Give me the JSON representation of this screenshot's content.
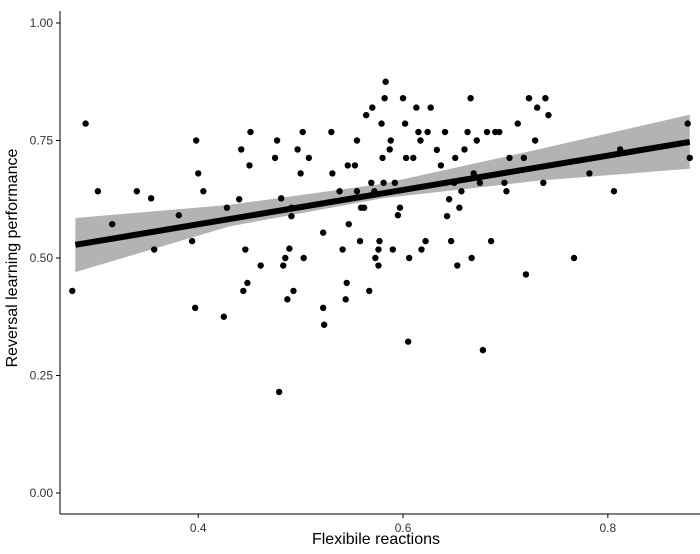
{
  "chart_data": {
    "type": "scatter",
    "title": "",
    "xlabel": "Flexibile reactions",
    "ylabel": "Reversal learning performance",
    "xlim": [
      0.265,
      0.89
    ],
    "ylim": [
      0,
      1.0
    ],
    "x_ticks": [
      0.4,
      0.6,
      0.8
    ],
    "x_tick_labels": [
      "0.4",
      "0.6",
      "0.8"
    ],
    "y_ticks": [
      0.0,
      0.25,
      0.5,
      0.75,
      1.0
    ],
    "y_tick_labels": [
      "0.00",
      "0.25",
      "0.50",
      "0.75",
      "1.00"
    ],
    "grid": false,
    "legend": "none",
    "colors": {
      "points": "#000000",
      "fit_line": "#000000",
      "confidence_band": "#b3b3b3",
      "axis": "#000000"
    },
    "fit": {
      "type": "linear",
      "x": [
        0.28,
        0.88
      ],
      "y": [
        0.528,
        0.747
      ]
    },
    "confidence_band": {
      "x": [
        0.28,
        0.43,
        0.58,
        0.73,
        0.88
      ],
      "lower": [
        0.47,
        0.567,
        0.627,
        0.664,
        0.69
      ],
      "upper": [
        0.585,
        0.613,
        0.658,
        0.73,
        0.805
      ]
    },
    "points": [
      {
        "x": 0.277,
        "y": 0.43
      },
      {
        "x": 0.29,
        "y": 0.786
      },
      {
        "x": 0.302,
        "y": 0.642
      },
      {
        "x": 0.316,
        "y": 0.572
      },
      {
        "x": 0.34,
        "y": 0.642
      },
      {
        "x": 0.354,
        "y": 0.627
      },
      {
        "x": 0.357,
        "y": 0.518
      },
      {
        "x": 0.381,
        "y": 0.591
      },
      {
        "x": 0.394,
        "y": 0.536
      },
      {
        "x": 0.397,
        "y": 0.394
      },
      {
        "x": 0.398,
        "y": 0.75
      },
      {
        "x": 0.4,
        "y": 0.68
      },
      {
        "x": 0.405,
        "y": 0.642
      },
      {
        "x": 0.425,
        "y": 0.375
      },
      {
        "x": 0.428,
        "y": 0.607
      },
      {
        "x": 0.44,
        "y": 0.625
      },
      {
        "x": 0.442,
        "y": 0.731
      },
      {
        "x": 0.444,
        "y": 0.43
      },
      {
        "x": 0.446,
        "y": 0.518
      },
      {
        "x": 0.448,
        "y": 0.447
      },
      {
        "x": 0.45,
        "y": 0.697
      },
      {
        "x": 0.451,
        "y": 0.768
      },
      {
        "x": 0.461,
        "y": 0.484
      },
      {
        "x": 0.475,
        "y": 0.713
      },
      {
        "x": 0.477,
        "y": 0.75
      },
      {
        "x": 0.479,
        "y": 0.215
      },
      {
        "x": 0.481,
        "y": 0.627
      },
      {
        "x": 0.483,
        "y": 0.484
      },
      {
        "x": 0.485,
        "y": 0.5
      },
      {
        "x": 0.487,
        "y": 0.412
      },
      {
        "x": 0.489,
        "y": 0.52
      },
      {
        "x": 0.491,
        "y": 0.589
      },
      {
        "x": 0.491,
        "y": 0.607
      },
      {
        "x": 0.493,
        "y": 0.43
      },
      {
        "x": 0.497,
        "y": 0.731
      },
      {
        "x": 0.5,
        "y": 0.68
      },
      {
        "x": 0.502,
        "y": 0.768
      },
      {
        "x": 0.503,
        "y": 0.5
      },
      {
        "x": 0.508,
        "y": 0.713
      },
      {
        "x": 0.522,
        "y": 0.394
      },
      {
        "x": 0.522,
        "y": 0.554
      },
      {
        "x": 0.523,
        "y": 0.358
      },
      {
        "x": 0.53,
        "y": 0.768
      },
      {
        "x": 0.531,
        "y": 0.68
      },
      {
        "x": 0.538,
        "y": 0.642
      },
      {
        "x": 0.541,
        "y": 0.518
      },
      {
        "x": 0.544,
        "y": 0.412
      },
      {
        "x": 0.545,
        "y": 0.447
      },
      {
        "x": 0.546,
        "y": 0.697
      },
      {
        "x": 0.547,
        "y": 0.572
      },
      {
        "x": 0.553,
        "y": 0.697
      },
      {
        "x": 0.555,
        "y": 0.642
      },
      {
        "x": 0.555,
        "y": 0.75
      },
      {
        "x": 0.558,
        "y": 0.536
      },
      {
        "x": 0.559,
        "y": 0.607
      },
      {
        "x": 0.562,
        "y": 0.607
      },
      {
        "x": 0.564,
        "y": 0.804
      },
      {
        "x": 0.567,
        "y": 0.43
      },
      {
        "x": 0.569,
        "y": 0.66
      },
      {
        "x": 0.57,
        "y": 0.82
      },
      {
        "x": 0.572,
        "y": 0.642
      },
      {
        "x": 0.573,
        "y": 0.5
      },
      {
        "x": 0.576,
        "y": 0.518
      },
      {
        "x": 0.576,
        "y": 0.484
      },
      {
        "x": 0.577,
        "y": 0.536
      },
      {
        "x": 0.579,
        "y": 0.786
      },
      {
        "x": 0.58,
        "y": 0.713
      },
      {
        "x": 0.581,
        "y": 0.66
      },
      {
        "x": 0.582,
        "y": 0.84
      },
      {
        "x": 0.583,
        "y": 0.875
      },
      {
        "x": 0.587,
        "y": 0.731
      },
      {
        "x": 0.588,
        "y": 0.75
      },
      {
        "x": 0.59,
        "y": 0.518
      },
      {
        "x": 0.592,
        "y": 0.66
      },
      {
        "x": 0.595,
        "y": 0.591
      },
      {
        "x": 0.597,
        "y": 0.607
      },
      {
        "x": 0.6,
        "y": 0.84
      },
      {
        "x": 0.602,
        "y": 0.786
      },
      {
        "x": 0.603,
        "y": 0.713
      },
      {
        "x": 0.605,
        "y": 0.322
      },
      {
        "x": 0.606,
        "y": 0.5
      },
      {
        "x": 0.61,
        "y": 0.713
      },
      {
        "x": 0.613,
        "y": 0.82
      },
      {
        "x": 0.615,
        "y": 0.768
      },
      {
        "x": 0.617,
        "y": 0.75
      },
      {
        "x": 0.618,
        "y": 0.518
      },
      {
        "x": 0.622,
        "y": 0.536
      },
      {
        "x": 0.624,
        "y": 0.768
      },
      {
        "x": 0.627,
        "y": 0.82
      },
      {
        "x": 0.633,
        "y": 0.73
      },
      {
        "x": 0.637,
        "y": 0.697
      },
      {
        "x": 0.641,
        "y": 0.768
      },
      {
        "x": 0.643,
        "y": 0.589
      },
      {
        "x": 0.645,
        "y": 0.625
      },
      {
        "x": 0.647,
        "y": 0.536
      },
      {
        "x": 0.65,
        "y": 0.66
      },
      {
        "x": 0.651,
        "y": 0.713
      },
      {
        "x": 0.653,
        "y": 0.484
      },
      {
        "x": 0.655,
        "y": 0.607
      },
      {
        "x": 0.657,
        "y": 0.642
      },
      {
        "x": 0.66,
        "y": 0.731
      },
      {
        "x": 0.663,
        "y": 0.768
      },
      {
        "x": 0.666,
        "y": 0.84
      },
      {
        "x": 0.667,
        "y": 0.5
      },
      {
        "x": 0.669,
        "y": 0.68
      },
      {
        "x": 0.672,
        "y": 0.75
      },
      {
        "x": 0.675,
        "y": 0.66
      },
      {
        "x": 0.678,
        "y": 0.304
      },
      {
        "x": 0.682,
        "y": 0.768
      },
      {
        "x": 0.686,
        "y": 0.536
      },
      {
        "x": 0.69,
        "y": 0.768
      },
      {
        "x": 0.694,
        "y": 0.768
      },
      {
        "x": 0.699,
        "y": 0.66
      },
      {
        "x": 0.701,
        "y": 0.642
      },
      {
        "x": 0.704,
        "y": 0.713
      },
      {
        "x": 0.712,
        "y": 0.786
      },
      {
        "x": 0.718,
        "y": 0.713
      },
      {
        "x": 0.72,
        "y": 0.465
      },
      {
        "x": 0.723,
        "y": 0.84
      },
      {
        "x": 0.729,
        "y": 0.75
      },
      {
        "x": 0.731,
        "y": 0.82
      },
      {
        "x": 0.737,
        "y": 0.66
      },
      {
        "x": 0.739,
        "y": 0.84
      },
      {
        "x": 0.742,
        "y": 0.804
      },
      {
        "x": 0.767,
        "y": 0.5
      },
      {
        "x": 0.782,
        "y": 0.68
      },
      {
        "x": 0.806,
        "y": 0.642
      },
      {
        "x": 0.812,
        "y": 0.731
      },
      {
        "x": 0.878,
        "y": 0.786
      },
      {
        "x": 0.88,
        "y": 0.713
      }
    ]
  }
}
